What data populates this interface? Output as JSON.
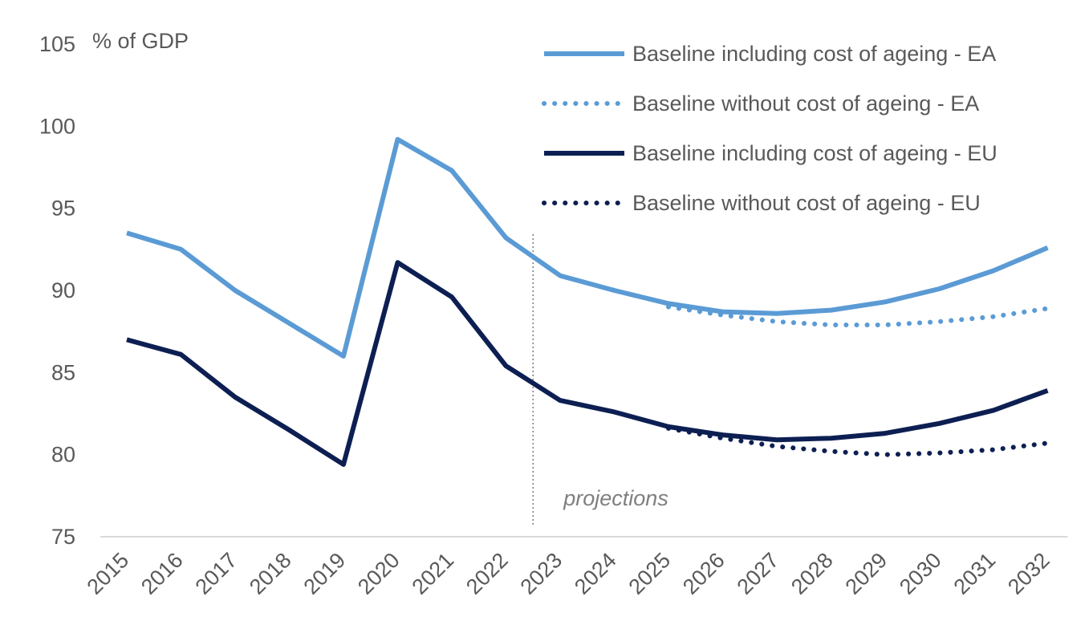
{
  "chart_data": {
    "type": "line",
    "title": "",
    "xlabel": "",
    "ylabel": "% of GDP",
    "ylim": [
      75,
      105
    ],
    "yticks": [
      75,
      80,
      85,
      90,
      95,
      100,
      105
    ],
    "grid": false,
    "legend_position": "top-right",
    "x": [
      "2015",
      "2016",
      "2017",
      "2018",
      "2019",
      "2020",
      "2021",
      "2022",
      "2023",
      "2024",
      "2025",
      "2026",
      "2027",
      "2028",
      "2029",
      "2030",
      "2031",
      "2032"
    ],
    "series": [
      {
        "name": "Baseline including cost of ageing - EA",
        "style": "solid",
        "color": "#5b9bd5",
        "values": [
          93.5,
          92.5,
          90.0,
          88.0,
          86.0,
          99.2,
          97.3,
          93.2,
          90.9,
          90.0,
          89.2,
          88.7,
          88.6,
          88.8,
          89.3,
          90.1,
          91.2,
          92.6
        ]
      },
      {
        "name": "Baseline without cost of ageing - EA",
        "style": "dotted",
        "color": "#5b9bd5",
        "values": [
          null,
          null,
          null,
          null,
          null,
          null,
          null,
          null,
          null,
          null,
          89.0,
          88.5,
          88.1,
          87.9,
          87.9,
          88.1,
          88.4,
          88.9
        ]
      },
      {
        "name": "Baseline including cost of ageing - EU",
        "style": "solid",
        "color": "#0d1f52",
        "values": [
          87.0,
          86.1,
          83.5,
          81.5,
          79.4,
          91.7,
          89.6,
          85.4,
          83.3,
          82.6,
          81.7,
          81.2,
          80.9,
          81.0,
          81.3,
          81.9,
          82.7,
          83.9
        ]
      },
      {
        "name": "Baseline without cost of ageing - EU",
        "style": "dotted",
        "color": "#0d1f52",
        "values": [
          null,
          null,
          null,
          null,
          null,
          null,
          null,
          null,
          null,
          null,
          81.6,
          81.0,
          80.5,
          80.2,
          80.0,
          80.1,
          80.3,
          80.7
        ]
      }
    ],
    "annotations": [
      {
        "text": "projections",
        "divider_between": [
          "2022",
          "2023"
        ]
      }
    ]
  }
}
